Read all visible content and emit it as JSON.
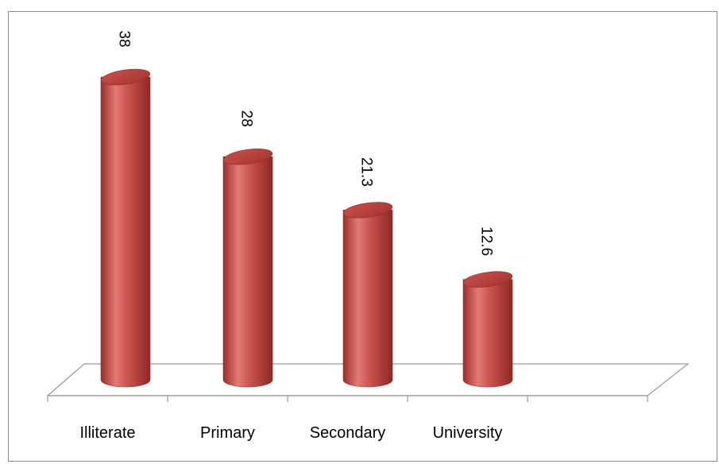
{
  "chart_data": {
    "type": "bar",
    "style": "3d-cylinder",
    "categories": [
      "Illiterate",
      "Primary",
      "Secondary",
      "University"
    ],
    "values": [
      38,
      28,
      21.3,
      12.6
    ],
    "value_labels": [
      "38",
      "28",
      "21.3",
      "12.6"
    ],
    "ylim": [
      0,
      40
    ],
    "grid": false,
    "legend": "none",
    "colors": {
      "bar": "#c0504d",
      "bar_light": "#e27a76",
      "bar_dark": "#9c2e2b",
      "axis": "#808080"
    }
  }
}
